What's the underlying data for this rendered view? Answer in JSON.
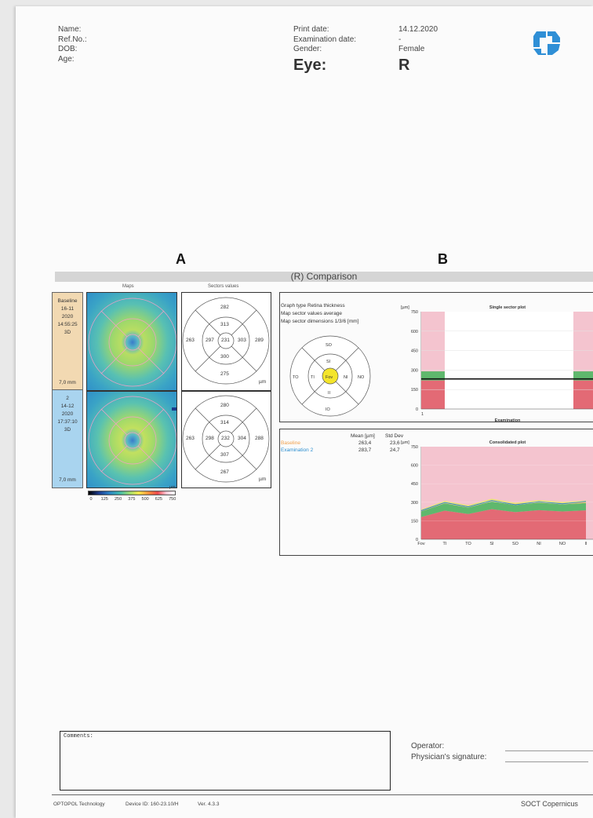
{
  "header": {
    "labels": {
      "name": "Name:",
      "ref": "Ref.No.:",
      "dob": "DOB:",
      "age": "Age:"
    },
    "print_date_label": "Print date:",
    "print_date_value": "14.12.2020",
    "exam_date_label": "Examination date:",
    "exam_date_value": "-",
    "gender_label": "Gender:",
    "gender_value": "Female",
    "eye_label": "Eye:",
    "eye_value": "R",
    "logo_icon": "optopol-logo"
  },
  "panel_letters": {
    "a": "A",
    "b": "B"
  },
  "section_title": "(R) Comparison",
  "col_headers": {
    "maps": "Maps",
    "sectors": "Sectors values"
  },
  "exams": [
    {
      "lines": [
        "Baseline",
        "16-11",
        "2020",
        "14:55:25",
        "3D"
      ],
      "size": "7,0 mm",
      "color": "#f2d9b2",
      "sectors": {
        "outer_top": "282",
        "inner_top": "313",
        "outer_left": "263",
        "inner_left": "297",
        "center": "231",
        "inner_right": "303",
        "outer_right": "289",
        "inner_bottom": "300",
        "outer_bottom": "275",
        "unit": "µm"
      }
    },
    {
      "lines": [
        "2",
        "14-12",
        "2020",
        "17:37:10",
        "3D"
      ],
      "size": "7,0 mm",
      "color": "#a9d4ef",
      "sectors": {
        "outer_top": "280",
        "inner_top": "314",
        "outer_left": "263",
        "inner_left": "298",
        "center": "232",
        "inner_right": "304",
        "outer_right": "288",
        "inner_bottom": "307",
        "outer_bottom": "267",
        "unit": "µm"
      }
    }
  ],
  "legend": {
    "unit": "µm",
    "ticks": [
      "0",
      "125",
      "250",
      "375",
      "500",
      "625",
      "750"
    ]
  },
  "graph_info": {
    "lines": [
      "Graph type Retina thickness",
      "Map sector values average",
      "Map sector dimensions 1/3/6 [mm]"
    ],
    "diagram": {
      "so": "SO",
      "si": "SI",
      "to": "TO",
      "ti": "TI",
      "fov": "Fov",
      "ni": "NI",
      "no": "NO",
      "ii": "II",
      "io": "IO"
    }
  },
  "stats": {
    "headers": {
      "mean": "Mean [µm]",
      "std": "Std Dev"
    },
    "rows": [
      {
        "name": "Baseline",
        "mean": "263,4",
        "std": "23,6",
        "color": "#f0a04b"
      },
      {
        "name": "Examination 2",
        "mean": "283,7",
        "std": "24,7",
        "color": "#2c8fd0"
      }
    ]
  },
  "chart_data": [
    {
      "type": "bar",
      "title": "Single sector plot",
      "xlabel": "Examination",
      "ylabel": "[µm]",
      "yticks": [
        "750",
        "600",
        "450",
        "300",
        "150",
        "0"
      ],
      "ylim": [
        0,
        750
      ],
      "xticks": [
        "1"
      ],
      "reference_line": 232
    },
    {
      "type": "area",
      "title": "Consolidated plot",
      "ylabel": "[µm]",
      "yticks": [
        "750",
        "600",
        "450",
        "300",
        "150",
        "0"
      ],
      "ylim": [
        0,
        750
      ],
      "categories": [
        "Fov",
        "TI",
        "TO",
        "SI",
        "SO",
        "NI",
        "NO",
        "II"
      ],
      "series": [
        {
          "name": "Baseline",
          "values": [
            231,
            297,
            263,
            313,
            282,
            303,
            289,
            300
          ]
        },
        {
          "name": "Examination 2",
          "values": [
            232,
            298,
            263,
            314,
            280,
            304,
            288,
            307
          ]
        }
      ]
    }
  ],
  "comments_label": "Comments:",
  "operator_label": "Operator:",
  "signature_label": "Physician's signature:",
  "footer": {
    "company": "OPTOPOL Technology",
    "device": "Device ID: 160-23.10/H",
    "version": "Ver. 4.3.3",
    "brand": "SOCT Copernicus"
  }
}
